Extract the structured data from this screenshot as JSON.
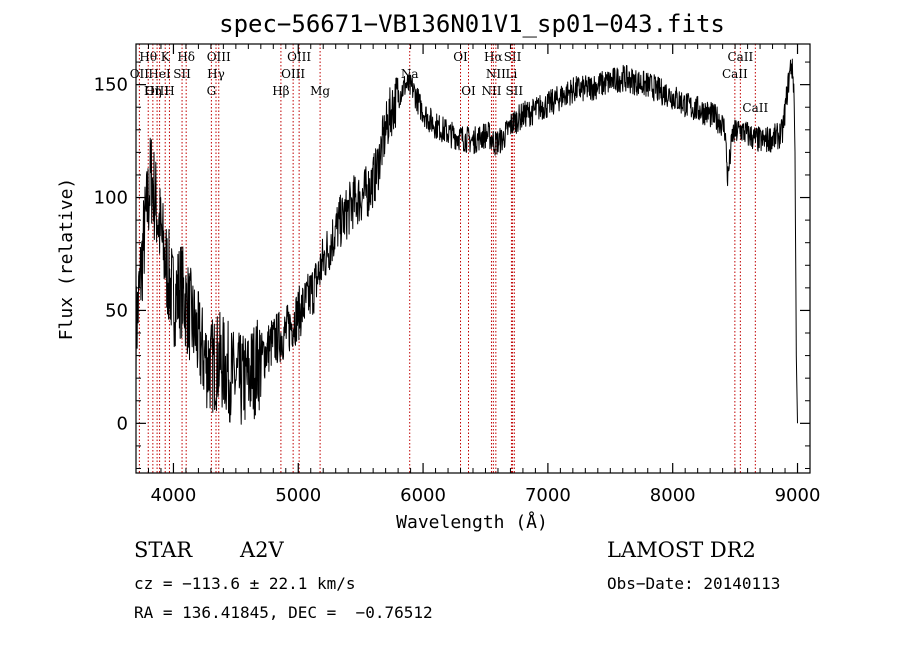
{
  "chart_data": {
    "type": "line",
    "title": "spec−56671−VB136N01V1_sp01−043.fits",
    "xlabel": "Wavelength (Å)",
    "ylabel": "Flux (relative)",
    "xlim": [
      3700,
      9100
    ],
    "ylim": [
      -22,
      168
    ],
    "xticks": [
      4000,
      5000,
      6000,
      7000,
      8000,
      9000
    ],
    "yticks": [
      0,
      50,
      100,
      150
    ],
    "series": [
      {
        "x": [
          3700,
          3760,
          3820,
          3880,
          3940,
          4000,
          4060,
          4120,
          4180,
          4240,
          4300,
          4360,
          4420,
          4480,
          4540,
          4600,
          4660,
          4720,
          4780,
          4840,
          4900,
          4960,
          5020,
          5080,
          5140,
          5200,
          5260,
          5320,
          5380,
          5440,
          5500,
          5560,
          5620,
          5680,
          5740,
          5800,
          5860,
          5920,
          5980,
          6040,
          6100,
          6160,
          6220,
          6280,
          6340,
          6400,
          6460,
          6520,
          6580,
          6640,
          6700,
          6760,
          6820,
          6880,
          6940,
          7000,
          7060,
          7120,
          7180,
          7240,
          7300,
          7360,
          7420,
          7480,
          7540,
          7600,
          7660,
          7720,
          7780,
          7840,
          7900,
          7960,
          8020,
          8080,
          8140,
          8200,
          8260,
          8320,
          8380,
          8420,
          8440,
          8480,
          8540,
          8600,
          8660,
          8720,
          8780,
          8840,
          8880,
          8920,
          8950,
          8970,
          8980,
          8990,
          9000
        ],
        "y": [
          40,
          80,
          110,
          90,
          70,
          55,
          60,
          50,
          40,
          30,
          25,
          28,
          25,
          20,
          18,
          20,
          25,
          30,
          35,
          38,
          40,
          45,
          50,
          55,
          62,
          72,
          80,
          88,
          92,
          98,
          100,
          103,
          110,
          125,
          138,
          145,
          150,
          148,
          140,
          135,
          132,
          130,
          128,
          127,
          126,
          125,
          127,
          128,
          124,
          126,
          132,
          135,
          137,
          138,
          140,
          141,
          143,
          145,
          147,
          148,
          148,
          149,
          150,
          151,
          152,
          153,
          152,
          151,
          150,
          149,
          147,
          146,
          144,
          142,
          140,
          139,
          138,
          136,
          134,
          130,
          108,
          128,
          130,
          128,
          126,
          125,
          126,
          127,
          129,
          148,
          160,
          150,
          120,
          30,
          0
        ]
      }
    ],
    "spectral_lines": [
      {
        "label": "Hθ",
        "wl": 3798
      },
      {
        "label": "K",
        "wl": 3934
      },
      {
        "label": "Hδ",
        "wl": 4102
      },
      {
        "label": "OIII",
        "wl": 4363
      },
      {
        "label": "OIII",
        "wl": 5007
      },
      {
        "label": "OI",
        "wl": 6300
      },
      {
        "label": "Hα",
        "wl": 6563
      },
      {
        "label": "SII",
        "wl": 6717
      },
      {
        "label": "CaII",
        "wl": 8542
      },
      {
        "label": "OII",
        "wl": 3727
      },
      {
        "label": "HeI",
        "wl": 3889
      },
      {
        "label": "SII",
        "wl": 4069
      },
      {
        "label": "Hγ",
        "wl": 4341
      },
      {
        "label": "OIII",
        "wl": 4959
      },
      {
        "label": "Na",
        "wl": 5893
      },
      {
        "label": "NII",
        "wl": 6583
      },
      {
        "label": "Li",
        "wl": 6708
      },
      {
        "label": "CaII",
        "wl": 8498
      },
      {
        "label": "OIII",
        "wl": 3869
      },
      {
        "label": "Hη",
        "wl": 3835
      },
      {
        "label": "H",
        "wl": 3968
      },
      {
        "label": "G",
        "wl": 4304
      },
      {
        "label": "Hβ",
        "wl": 4861
      },
      {
        "label": "Mg",
        "wl": 5175
      },
      {
        "label": "OI",
        "wl": 6364
      },
      {
        "label": "NII",
        "wl": 6548
      },
      {
        "label": "SII",
        "wl": 6731
      },
      {
        "label": "CaII",
        "wl": 8662
      }
    ]
  },
  "info": {
    "object_type": "STAR",
    "subclass": "A2V",
    "survey": "LAMOST DR2",
    "cz": "cz = −113.6 ± 22.1 km/s",
    "obs_date": "Obs−Date: 20140113",
    "coords": "RA = 136.41845, DEC =  −0.76512"
  }
}
